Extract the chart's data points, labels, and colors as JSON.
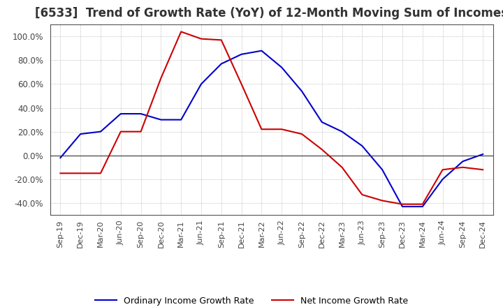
{
  "title": "[6533]  Trend of Growth Rate (YoY) of 12-Month Moving Sum of Incomes",
  "title_fontsize": 12,
  "ylim": [
    -0.5,
    1.1
  ],
  "yticks": [
    -0.4,
    -0.2,
    0.0,
    0.2,
    0.4,
    0.6,
    0.8,
    1.0
  ],
  "background_color": "#ffffff",
  "grid_color": "#aaaaaa",
  "ordinary_color": "#0000cc",
  "net_color": "#cc0000",
  "legend_ordinary": "Ordinary Income Growth Rate",
  "legend_net": "Net Income Growth Rate",
  "x_labels": [
    "Sep-19",
    "Dec-19",
    "Mar-20",
    "Jun-20",
    "Sep-20",
    "Dec-20",
    "Mar-21",
    "Jun-21",
    "Sep-21",
    "Dec-21",
    "Mar-22",
    "Jun-22",
    "Sep-22",
    "Dec-22",
    "Mar-23",
    "Jun-23",
    "Sep-23",
    "Dec-23",
    "Mar-24",
    "Jun-24",
    "Sep-24",
    "Dec-24"
  ],
  "ordinary_y": [
    -0.02,
    0.18,
    0.2,
    0.35,
    0.35,
    0.3,
    0.3,
    0.6,
    0.77,
    0.85,
    0.88,
    0.74,
    0.54,
    0.28,
    0.2,
    0.08,
    -0.12,
    -0.43,
    -0.43,
    -0.2,
    -0.05,
    0.01
  ],
  "net_y": [
    -0.15,
    -0.15,
    -0.15,
    0.2,
    0.2,
    0.65,
    1.04,
    0.98,
    0.97,
    0.6,
    0.22,
    0.22,
    0.18,
    0.05,
    -0.1,
    -0.33,
    -0.38,
    -0.41,
    -0.41,
    -0.12,
    -0.1,
    -0.12
  ]
}
